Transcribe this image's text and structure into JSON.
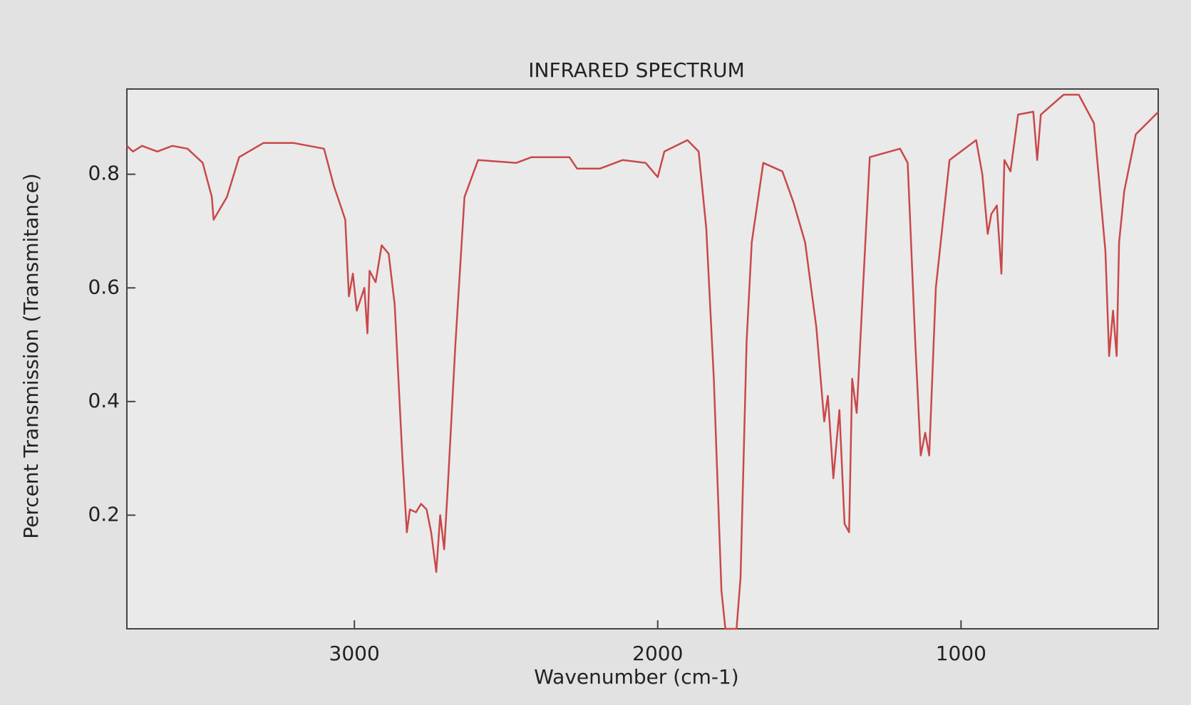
{
  "chart_data": {
    "type": "line",
    "title": "INFRARED SPECTRUM",
    "xlabel": "Wavenumber (cm-1)",
    "ylabel": "Percent Transmission (Transmitance)",
    "x": [
      3750,
      3730,
      3700,
      3650,
      3600,
      3550,
      3500,
      3470,
      3464,
      3420,
      3380,
      3300,
      3200,
      3100,
      3068,
      3030,
      3018,
      3005,
      2992,
      2967,
      2957,
      2950,
      2930,
      2910,
      2887,
      2867,
      2842,
      2827,
      2817,
      2797,
      2780,
      2762,
      2747,
      2730,
      2717,
      2704,
      2692,
      2667,
      2637,
      2592,
      2466,
      2416,
      2291,
      2266,
      2190,
      2115,
      2040,
      2000,
      1978,
      1902,
      1865,
      1840,
      1815,
      1790,
      1777,
      1740,
      1727,
      1707,
      1690,
      1652,
      1589,
      1552,
      1514,
      1477,
      1451,
      1439,
      1421,
      1401,
      1384,
      1369,
      1359,
      1344,
      1326,
      1301,
      1201,
      1176,
      1151,
      1133,
      1118,
      1105,
      1083,
      1038,
      950,
      930,
      912,
      900,
      882,
      867,
      857,
      837,
      812,
      762,
      749,
      737,
      662,
      612,
      562,
      524,
      512,
      499,
      487,
      479,
      462,
      424,
      349
    ],
    "values": [
      0.85,
      0.84,
      0.85,
      0.84,
      0.85,
      0.845,
      0.82,
      0.76,
      0.72,
      0.76,
      0.83,
      0.855,
      0.855,
      0.845,
      0.78,
      0.72,
      0.585,
      0.625,
      0.56,
      0.6,
      0.52,
      0.63,
      0.61,
      0.675,
      0.66,
      0.57,
      0.305,
      0.17,
      0.21,
      0.205,
      0.22,
      0.21,
      0.17,
      0.1,
      0.2,
      0.14,
      0.25,
      0.5,
      0.76,
      0.825,
      0.82,
      0.83,
      0.83,
      0.81,
      0.81,
      0.825,
      0.82,
      0.795,
      0.84,
      0.86,
      0.84,
      0.705,
      0.44,
      0.067,
      0,
      0,
      0.09,
      0.505,
      0.68,
      0.82,
      0.805,
      0.75,
      0.68,
      0.53,
      0.365,
      0.41,
      0.265,
      0.385,
      0.185,
      0.17,
      0.44,
      0.38,
      0.57,
      0.83,
      0.845,
      0.82,
      0.505,
      0.305,
      0.345,
      0.305,
      0.6,
      0.825,
      0.86,
      0.8,
      0.695,
      0.73,
      0.745,
      0.625,
      0.825,
      0.805,
      0.905,
      0.91,
      0.825,
      0.905,
      0.94,
      0.94,
      0.89,
      0.665,
      0.48,
      0.56,
      0.48,
      0.68,
      0.77,
      0.87,
      0.91
    ],
    "color": "#c9484a",
    "xlim": [
      3750,
      350
    ],
    "xticks": [
      3000,
      2000,
      1000
    ],
    "ylim": [
      0,
      0.95
    ],
    "yticks": [
      0.2,
      0.4,
      0.6,
      0.8
    ]
  }
}
